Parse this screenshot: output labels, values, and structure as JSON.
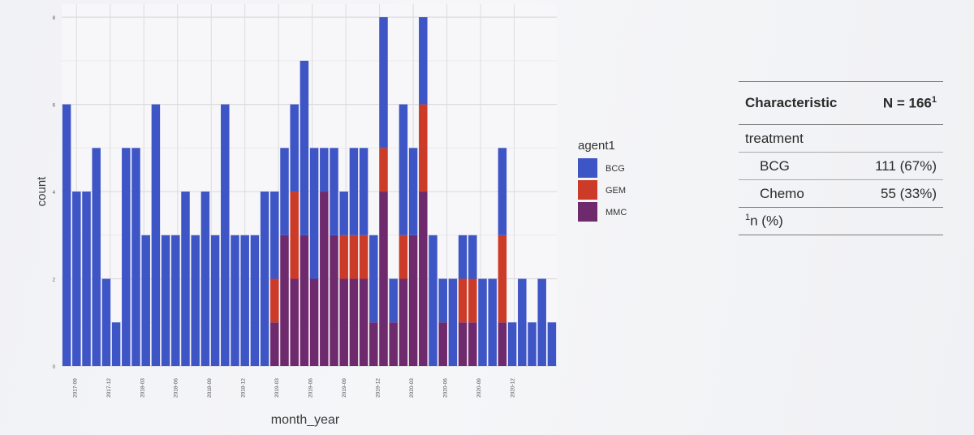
{
  "colors": {
    "BCG": "#3e55c6",
    "GEM": "#cc3b28",
    "MMC": "#6e2a6d"
  },
  "chart_data": {
    "type": "bar",
    "stacked": true,
    "xlabel": "month_year",
    "ylabel": "count",
    "ylim": [
      0,
      8.3
    ],
    "y_ticks": [
      "0",
      "2",
      "4",
      "6",
      "8"
    ],
    "grid": true,
    "legend": {
      "title": "agent1",
      "placement": "right",
      "entries": [
        "BCG",
        "GEM",
        "MMC"
      ]
    },
    "x_tick_labels": [
      "2017-09",
      "2017-12",
      "2018-03",
      "2018-06",
      "2018-09",
      "2018-12",
      "2019-03",
      "2019-06",
      "2019-09",
      "2019-12",
      "2020-03",
      "2020-06",
      "2020-09",
      "2020-12"
    ],
    "series": [
      {
        "name": "BCG",
        "values": [
          6,
          4,
          4,
          5,
          2,
          1,
          5,
          5,
          3,
          6,
          3,
          3,
          4,
          3,
          4,
          3,
          6,
          3,
          3,
          3,
          4,
          2,
          2,
          2,
          4,
          3,
          1,
          2,
          1,
          2,
          2,
          2,
          3,
          1,
          3,
          2,
          2,
          3,
          1,
          2,
          1,
          1,
          2,
          2,
          2,
          1,
          2,
          1,
          2,
          1
        ]
      },
      {
        "name": "GEM",
        "values": [
          0,
          0,
          0,
          0,
          0,
          0,
          0,
          0,
          0,
          0,
          0,
          0,
          0,
          0,
          0,
          0,
          0,
          0,
          0,
          0,
          0,
          1,
          0,
          2,
          0,
          0,
          0,
          0,
          1,
          1,
          1,
          0,
          1,
          0,
          1,
          0,
          2,
          0,
          0,
          0,
          1,
          1,
          0,
          0,
          2,
          0,
          0,
          0,
          0,
          0
        ]
      },
      {
        "name": "MMC",
        "values": [
          0,
          0,
          0,
          0,
          0,
          0,
          0,
          0,
          0,
          0,
          0,
          0,
          0,
          0,
          0,
          0,
          0,
          0,
          0,
          0,
          0,
          1,
          3,
          2,
          3,
          2,
          4,
          3,
          2,
          2,
          2,
          1,
          4,
          1,
          2,
          3,
          4,
          0,
          1,
          0,
          1,
          1,
          0,
          0,
          1,
          0,
          0,
          0,
          0,
          0
        ]
      }
    ]
  },
  "table": {
    "header": {
      "characteristic": "Characteristic",
      "n": "N = 166",
      "n_sup": "1"
    },
    "group": "treatment",
    "rows": [
      {
        "label": "BCG",
        "value": "111 (67%)"
      },
      {
        "label": "Chemo",
        "value": "55 (33%)"
      }
    ],
    "footnote": {
      "sup": "1",
      "text": "n (%)"
    }
  }
}
